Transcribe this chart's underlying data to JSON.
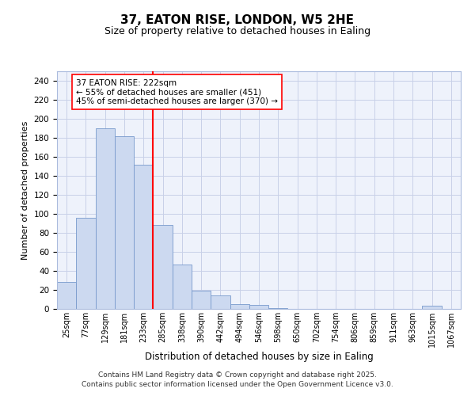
{
  "title": "37, EATON RISE, LONDON, W5 2HE",
  "subtitle": "Size of property relative to detached houses in Ealing",
  "xlabel": "Distribution of detached houses by size in Ealing",
  "ylabel": "Number of detached properties",
  "bin_labels": [
    "25sqm",
    "77sqm",
    "129sqm",
    "181sqm",
    "233sqm",
    "285sqm",
    "338sqm",
    "390sqm",
    "442sqm",
    "494sqm",
    "546sqm",
    "598sqm",
    "650sqm",
    "702sqm",
    "754sqm",
    "806sqm",
    "859sqm",
    "911sqm",
    "963sqm",
    "1015sqm",
    "1067sqm"
  ],
  "bar_heights": [
    28,
    96,
    190,
    182,
    152,
    88,
    47,
    19,
    14,
    5,
    4,
    1,
    0,
    0,
    0,
    0,
    0,
    0,
    0,
    3,
    0
  ],
  "bar_color": "#ccd9f0",
  "bar_edge_color": "#7799cc",
  "vline_position": 4.5,
  "vline_color": "red",
  "annotation_text": "37 EATON RISE: 222sqm\n← 55% of detached houses are smaller (451)\n45% of semi-detached houses are larger (370) →",
  "annotation_box_color": "white",
  "annotation_box_edge": "red",
  "bg_color": "#eef2fb",
  "grid_color": "#c8d0e8",
  "ylim": [
    0,
    250
  ],
  "yticks": [
    0,
    20,
    40,
    60,
    80,
    100,
    120,
    140,
    160,
    180,
    200,
    220,
    240
  ],
  "footer1": "Contains HM Land Registry data © Crown copyright and database right 2025.",
  "footer2": "Contains public sector information licensed under the Open Government Licence v3.0."
}
